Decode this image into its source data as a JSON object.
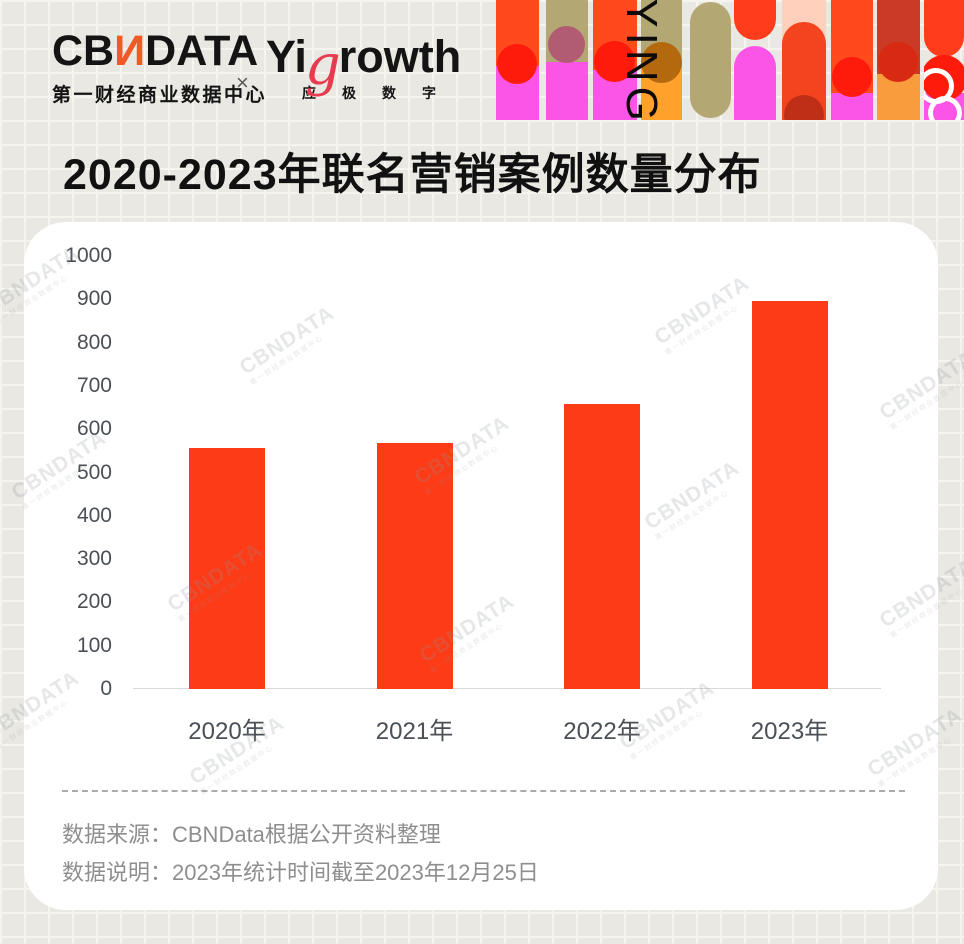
{
  "header": {
    "cbndata": {
      "prefix": "CB",
      "n": "N",
      "suffix": "DATA",
      "subtitle": "第一财经商业数据中心"
    },
    "separator": "×",
    "yigrowth": {
      "prefix": "Yi",
      "g": "g",
      "suffix": "rowth",
      "subtitle": "应极数字"
    },
    "banner_text": "YING"
  },
  "title": "2020-2023年联名营销案例数量分布",
  "chart_data": {
    "type": "bar",
    "title": "2020-2023年联名营销案例数量分布",
    "categories": [
      "2020年",
      "2021年",
      "2022年",
      "2023年"
    ],
    "values": [
      557,
      568,
      658,
      897
    ],
    "ylim": [
      0,
      1000
    ],
    "yticks": [
      0,
      100,
      200,
      300,
      400,
      500,
      600,
      700,
      800,
      900,
      1000
    ],
    "xlabel": "",
    "ylabel": "",
    "grid": false,
    "bar_color": "#FD3B17",
    "axis_color": "#D9D9D9"
  },
  "footer": {
    "source": "数据来源：CBNData根据公开资料整理",
    "note": "数据说明：2023年统计时间截至2023年12月25日"
  },
  "watermark": {
    "line1": "CBNDATA",
    "line2": "第一财经商业数据中心"
  },
  "colors": {
    "background": "#E9E8E2",
    "grid_line": "#F5F4EF",
    "card": "#FFFFFF",
    "bar": "#FD3B17",
    "logo_orange": "#F15A24",
    "logo_red": "#E73B50",
    "banner_magenta": "#FA55E6",
    "banner_olive": "#B3A873",
    "banner_orange": "#FFA12B",
    "text_title": "#111111",
    "text_axis": "#4A5056",
    "text_footer": "#8E8E8E"
  }
}
